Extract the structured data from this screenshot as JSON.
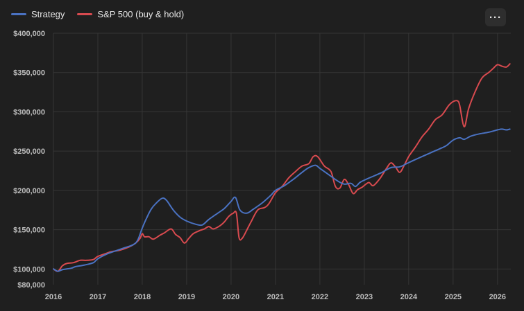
{
  "menu": {
    "label": "···"
  },
  "chart_data": {
    "type": "line",
    "title": "",
    "xlabel": "",
    "ylabel": "",
    "legend_position": "top-left",
    "grid": true,
    "xlim": [
      2016,
      2026.3
    ],
    "ylim": [
      80000,
      400000
    ],
    "x_ticks": [
      2016,
      2017,
      2018,
      2019,
      2020,
      2021,
      2022,
      2023,
      2024,
      2025,
      2026
    ],
    "x_tick_labels": [
      "2016",
      "2017",
      "2018",
      "2019",
      "2020",
      "2021",
      "2022",
      "2023",
      "2024",
      "2025",
      "2026"
    ],
    "y_ticks": [
      80000,
      100000,
      150000,
      200000,
      250000,
      300000,
      350000,
      400000
    ],
    "y_tick_labels": [
      "$80,000",
      "$100,000",
      "$150,000",
      "$200,000",
      "$250,000",
      "$300,000",
      "$350,000",
      "$400,000"
    ],
    "series": [
      {
        "name": "Strategy",
        "color": "#4a72c2",
        "points": [
          [
            2016.0,
            100000
          ],
          [
            2016.1,
            97000
          ],
          [
            2016.2,
            99000
          ],
          [
            2016.4,
            101000
          ],
          [
            2016.5,
            103000
          ],
          [
            2016.7,
            105000
          ],
          [
            2016.9,
            108000
          ],
          [
            2017.0,
            113000
          ],
          [
            2017.2,
            119000
          ],
          [
            2017.4,
            123000
          ],
          [
            2017.6,
            127000
          ],
          [
            2017.8,
            131000
          ],
          [
            2017.9,
            137000
          ],
          [
            2018.0,
            152000
          ],
          [
            2018.1,
            165000
          ],
          [
            2018.2,
            176000
          ],
          [
            2018.3,
            183000
          ],
          [
            2018.45,
            190000
          ],
          [
            2018.55,
            187000
          ],
          [
            2018.7,
            175000
          ],
          [
            2018.85,
            166000
          ],
          [
            2019.0,
            161000
          ],
          [
            2019.2,
            157000
          ],
          [
            2019.35,
            156000
          ],
          [
            2019.5,
            163000
          ],
          [
            2019.7,
            171000
          ],
          [
            2019.85,
            177000
          ],
          [
            2020.0,
            186000
          ],
          [
            2020.1,
            191000
          ],
          [
            2020.2,
            175000
          ],
          [
            2020.35,
            171000
          ],
          [
            2020.5,
            176000
          ],
          [
            2020.7,
            184000
          ],
          [
            2020.9,
            194000
          ],
          [
            2021.0,
            200000
          ],
          [
            2021.2,
            206000
          ],
          [
            2021.4,
            214000
          ],
          [
            2021.6,
            223000
          ],
          [
            2021.75,
            229000
          ],
          [
            2021.9,
            232000
          ],
          [
            2022.0,
            228000
          ],
          [
            2022.2,
            220000
          ],
          [
            2022.4,
            212000
          ],
          [
            2022.55,
            208000
          ],
          [
            2022.7,
            209000
          ],
          [
            2022.8,
            205000
          ],
          [
            2022.9,
            210000
          ],
          [
            2023.0,
            213000
          ],
          [
            2023.2,
            218000
          ],
          [
            2023.4,
            223000
          ],
          [
            2023.6,
            229000
          ],
          [
            2023.8,
            230000
          ],
          [
            2023.95,
            234000
          ],
          [
            2024.1,
            238000
          ],
          [
            2024.3,
            243000
          ],
          [
            2024.5,
            248000
          ],
          [
            2024.7,
            253000
          ],
          [
            2024.85,
            257000
          ],
          [
            2025.0,
            264000
          ],
          [
            2025.15,
            267000
          ],
          [
            2025.25,
            265000
          ],
          [
            2025.4,
            269000
          ],
          [
            2025.6,
            272000
          ],
          [
            2025.8,
            274000
          ],
          [
            2026.0,
            277000
          ],
          [
            2026.1,
            278000
          ],
          [
            2026.2,
            277000
          ],
          [
            2026.28,
            278000
          ]
        ]
      },
      {
        "name": "S&P 500 (buy & hold)",
        "color": "#d84a4f",
        "points": [
          [
            2016.0,
            100000
          ],
          [
            2016.1,
            97000
          ],
          [
            2016.2,
            104000
          ],
          [
            2016.3,
            107000
          ],
          [
            2016.45,
            108000
          ],
          [
            2016.6,
            111000
          ],
          [
            2016.75,
            111000
          ],
          [
            2016.9,
            112000
          ],
          [
            2017.0,
            116000
          ],
          [
            2017.2,
            120000
          ],
          [
            2017.3,
            122000
          ],
          [
            2017.5,
            124000
          ],
          [
            2017.7,
            128000
          ],
          [
            2017.85,
            133000
          ],
          [
            2017.95,
            139000
          ],
          [
            2018.0,
            145000
          ],
          [
            2018.05,
            141000
          ],
          [
            2018.15,
            141000
          ],
          [
            2018.25,
            138000
          ],
          [
            2018.4,
            143000
          ],
          [
            2018.5,
            146000
          ],
          [
            2018.65,
            151000
          ],
          [
            2018.75,
            144000
          ],
          [
            2018.85,
            140000
          ],
          [
            2018.95,
            133000
          ],
          [
            2019.05,
            139000
          ],
          [
            2019.15,
            145000
          ],
          [
            2019.3,
            149000
          ],
          [
            2019.4,
            151000
          ],
          [
            2019.5,
            154000
          ],
          [
            2019.6,
            151000
          ],
          [
            2019.75,
            155000
          ],
          [
            2019.85,
            160000
          ],
          [
            2019.95,
            167000
          ],
          [
            2020.05,
            171000
          ],
          [
            2020.12,
            171000
          ],
          [
            2020.18,
            140000
          ],
          [
            2020.25,
            139000
          ],
          [
            2020.35,
            149000
          ],
          [
            2020.45,
            160000
          ],
          [
            2020.6,
            175000
          ],
          [
            2020.75,
            178000
          ],
          [
            2020.85,
            183000
          ],
          [
            2021.0,
            197000
          ],
          [
            2021.15,
            205000
          ],
          [
            2021.3,
            216000
          ],
          [
            2021.45,
            224000
          ],
          [
            2021.6,
            231000
          ],
          [
            2021.75,
            234000
          ],
          [
            2021.85,
            243000
          ],
          [
            2021.95,
            243000
          ],
          [
            2022.1,
            231000
          ],
          [
            2022.25,
            224000
          ],
          [
            2022.35,
            205000
          ],
          [
            2022.45,
            203000
          ],
          [
            2022.55,
            214000
          ],
          [
            2022.65,
            207000
          ],
          [
            2022.75,
            196000
          ],
          [
            2022.85,
            201000
          ],
          [
            2022.95,
            204000
          ],
          [
            2023.1,
            210000
          ],
          [
            2023.2,
            206000
          ],
          [
            2023.35,
            215000
          ],
          [
            2023.5,
            228000
          ],
          [
            2023.6,
            235000
          ],
          [
            2023.7,
            230000
          ],
          [
            2023.8,
            223000
          ],
          [
            2023.9,
            232000
          ],
          [
            2024.0,
            243000
          ],
          [
            2024.15,
            255000
          ],
          [
            2024.3,
            268000
          ],
          [
            2024.45,
            278000
          ],
          [
            2024.6,
            290000
          ],
          [
            2024.75,
            296000
          ],
          [
            2024.9,
            308000
          ],
          [
            2025.0,
            313000
          ],
          [
            2025.1,
            314000
          ],
          [
            2025.15,
            308000
          ],
          [
            2025.25,
            281000
          ],
          [
            2025.35,
            304000
          ],
          [
            2025.5,
            326000
          ],
          [
            2025.65,
            343000
          ],
          [
            2025.8,
            350000
          ],
          [
            2025.9,
            355000
          ],
          [
            2026.0,
            360000
          ],
          [
            2026.1,
            358000
          ],
          [
            2026.2,
            357000
          ],
          [
            2026.28,
            361000
          ]
        ]
      }
    ]
  }
}
